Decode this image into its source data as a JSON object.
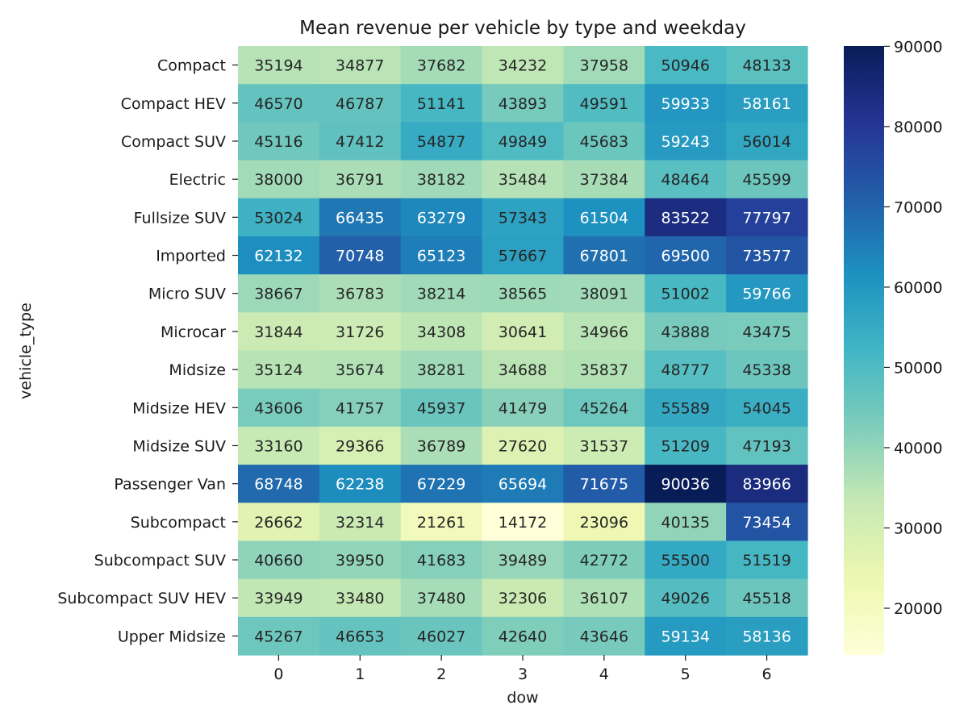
{
  "chart_data": {
    "type": "heatmap",
    "title": "Mean revenue per vehicle by type and weekday",
    "xlabel": "dow",
    "ylabel": "vehicle_type",
    "x_categories": [
      "0",
      "1",
      "2",
      "3",
      "4",
      "5",
      "6"
    ],
    "y_categories": [
      "Compact",
      "Compact HEV",
      "Compact SUV",
      "Electric",
      "Fullsize SUV",
      "Imported",
      "Micro SUV",
      "Microcar",
      "Midsize",
      "Midsize HEV",
      "Midsize SUV",
      "Passenger Van",
      "Subcompact",
      "Subcompact SUV",
      "Subcompact SUV HEV",
      "Upper Midsize"
    ],
    "values": [
      [
        35194,
        34877,
        37682,
        34232,
        37958,
        50946,
        48133
      ],
      [
        46570,
        46787,
        51141,
        43893,
        49591,
        59933,
        58161
      ],
      [
        45116,
        47412,
        54877,
        49849,
        45683,
        59243,
        56014
      ],
      [
        38000,
        36791,
        38182,
        35484,
        37384,
        48464,
        45599
      ],
      [
        53024,
        66435,
        63279,
        57343,
        61504,
        83522,
        77797
      ],
      [
        62132,
        70748,
        65123,
        57667,
        67801,
        69500,
        73577
      ],
      [
        38667,
        36783,
        38214,
        38565,
        38091,
        51002,
        59766
      ],
      [
        31844,
        31726,
        34308,
        30641,
        34966,
        43888,
        43475
      ],
      [
        35124,
        35674,
        38281,
        34688,
        35837,
        48777,
        45338
      ],
      [
        43606,
        41757,
        45937,
        41479,
        45264,
        55589,
        54045
      ],
      [
        33160,
        29366,
        36789,
        27620,
        31537,
        51209,
        47193
      ],
      [
        68748,
        62238,
        67229,
        65694,
        71675,
        90036,
        83966
      ],
      [
        26662,
        32314,
        21261,
        14172,
        23096,
        40135,
        73454
      ],
      [
        40660,
        39950,
        41683,
        39489,
        42772,
        55500,
        51519
      ],
      [
        33949,
        33480,
        37480,
        32306,
        36107,
        49026,
        45518
      ],
      [
        45267,
        46653,
        46027,
        42640,
        43646,
        59134,
        58136
      ]
    ],
    "colormap": "YlGnBu",
    "colormap_stops": [
      "#ffffd9",
      "#edf8b1",
      "#c7e9b4",
      "#7fcdbb",
      "#41b6c4",
      "#1d91c0",
      "#225ea8",
      "#253494",
      "#081d58"
    ],
    "vmin": 14172,
    "vmax": 90036,
    "colorbar_ticks": [
      20000,
      30000,
      40000,
      50000,
      60000,
      70000,
      80000,
      90000
    ],
    "annotation_dark_color": "#262626",
    "annotation_light_color": "#ffffff"
  }
}
